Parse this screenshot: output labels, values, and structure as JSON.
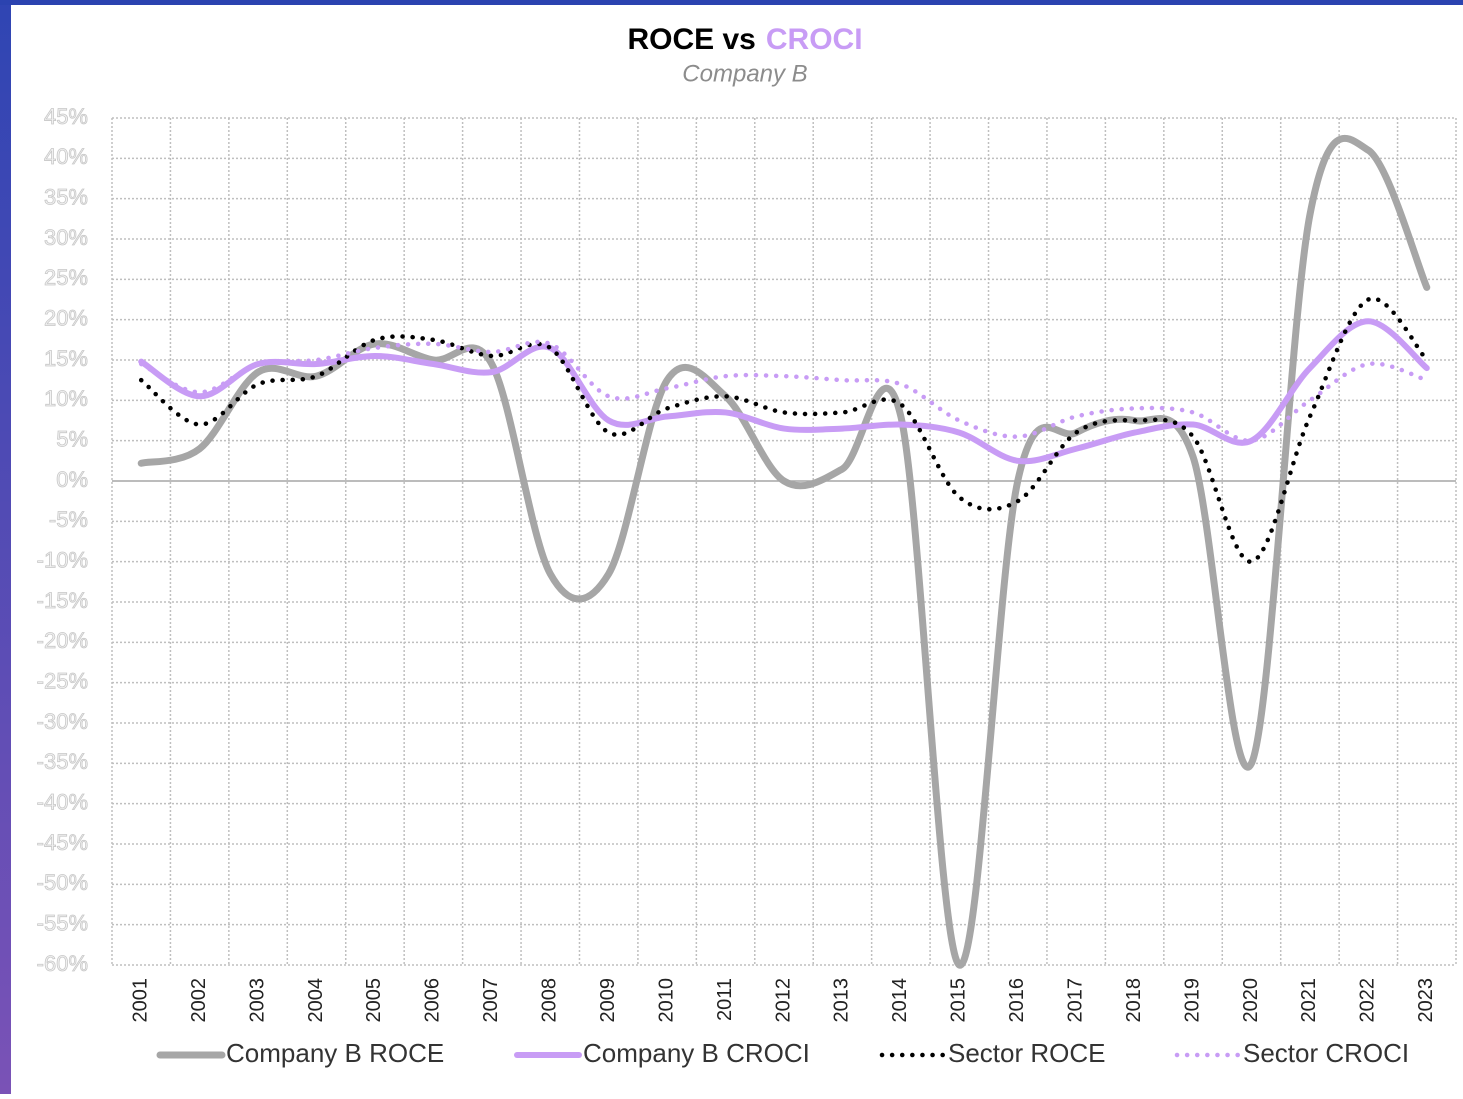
{
  "chart_data": {
    "type": "line",
    "title_parts": [
      {
        "text": "ROCE vs",
        "color": "#000000"
      },
      {
        "text": "CROCI",
        "color": "#c89cf5"
      }
    ],
    "subtitle": "Company B",
    "categories": [
      "2001",
      "2002",
      "2003",
      "2004",
      "2005",
      "2006",
      "2007",
      "2008",
      "2009",
      "2010",
      "2011",
      "2012",
      "2013",
      "2014",
      "2015",
      "2016",
      "2017",
      "2018",
      "2019",
      "2020",
      "2021",
      "2022",
      "2023"
    ],
    "series": [
      {
        "name": "Company B ROCE",
        "color": "#a6a6a6",
        "style": "solid",
        "values": [
          2.2,
          4,
          13.5,
          13,
          17,
          15,
          14.5,
          -11.5,
          -11.5,
          12.5,
          10.5,
          0,
          1.5,
          8,
          -60,
          0,
          6,
          7.5,
          3,
          -35,
          33,
          41,
          24
        ]
      },
      {
        "name": "Company B CROCI",
        "color": "#c89cf5",
        "style": "solid",
        "values": [
          14.8,
          10.5,
          14.5,
          14.5,
          15.5,
          14.5,
          13.5,
          16.5,
          7.5,
          8,
          8.5,
          6.5,
          6.5,
          7,
          6,
          2.5,
          4,
          6,
          7,
          5,
          14,
          19.8,
          14
        ]
      },
      {
        "name": "Sector ROCE",
        "color": "#000000",
        "style": "dotted",
        "values": [
          12.5,
          7,
          12,
          13,
          17.5,
          17.5,
          15.5,
          16.5,
          6,
          9,
          10.5,
          8.5,
          8.5,
          9.5,
          -2,
          -2.5,
          6,
          7.5,
          5.5,
          -10,
          8,
          22.5,
          15
        ]
      },
      {
        "name": "Sector CROCI",
        "color": "#c89cf5",
        "style": "dotted",
        "values": [
          14.5,
          11,
          14.5,
          15,
          16.5,
          17,
          16,
          17,
          10.5,
          11.5,
          13,
          13,
          12.5,
          12,
          7.5,
          5.5,
          8,
          9,
          8.5,
          5,
          10,
          14.5,
          12.5
        ]
      }
    ],
    "ylim": [
      -60,
      45
    ],
    "yticks": [
      {
        "value": -60,
        "label": "-60%"
      },
      {
        "value": -55,
        "label": "-55%"
      },
      {
        "value": -50,
        "label": "-50%"
      },
      {
        "value": -45,
        "label": "-45%"
      },
      {
        "value": -40,
        "label": "-40%"
      },
      {
        "value": -35,
        "label": "-35%"
      },
      {
        "value": -30,
        "label": "-30%"
      },
      {
        "value": -25,
        "label": "-25%"
      },
      {
        "value": -20,
        "label": "-20%"
      },
      {
        "value": -15,
        "label": "-15%"
      },
      {
        "value": -10,
        "label": "-10%"
      },
      {
        "value": -5,
        "label": "-5%"
      },
      {
        "value": 0,
        "label": "0%"
      },
      {
        "value": 5,
        "label": "5%"
      },
      {
        "value": 10,
        "label": "10%"
      },
      {
        "value": 15,
        "label": "15%"
      },
      {
        "value": 20,
        "label": "20%"
      },
      {
        "value": 25,
        "label": "25%"
      },
      {
        "value": 30,
        "label": "30%"
      },
      {
        "value": 35,
        "label": "35%"
      },
      {
        "value": 40,
        "label": "40%"
      },
      {
        "value": 45,
        "label": "45%"
      }
    ],
    "grid": true,
    "legend": "bottom"
  }
}
